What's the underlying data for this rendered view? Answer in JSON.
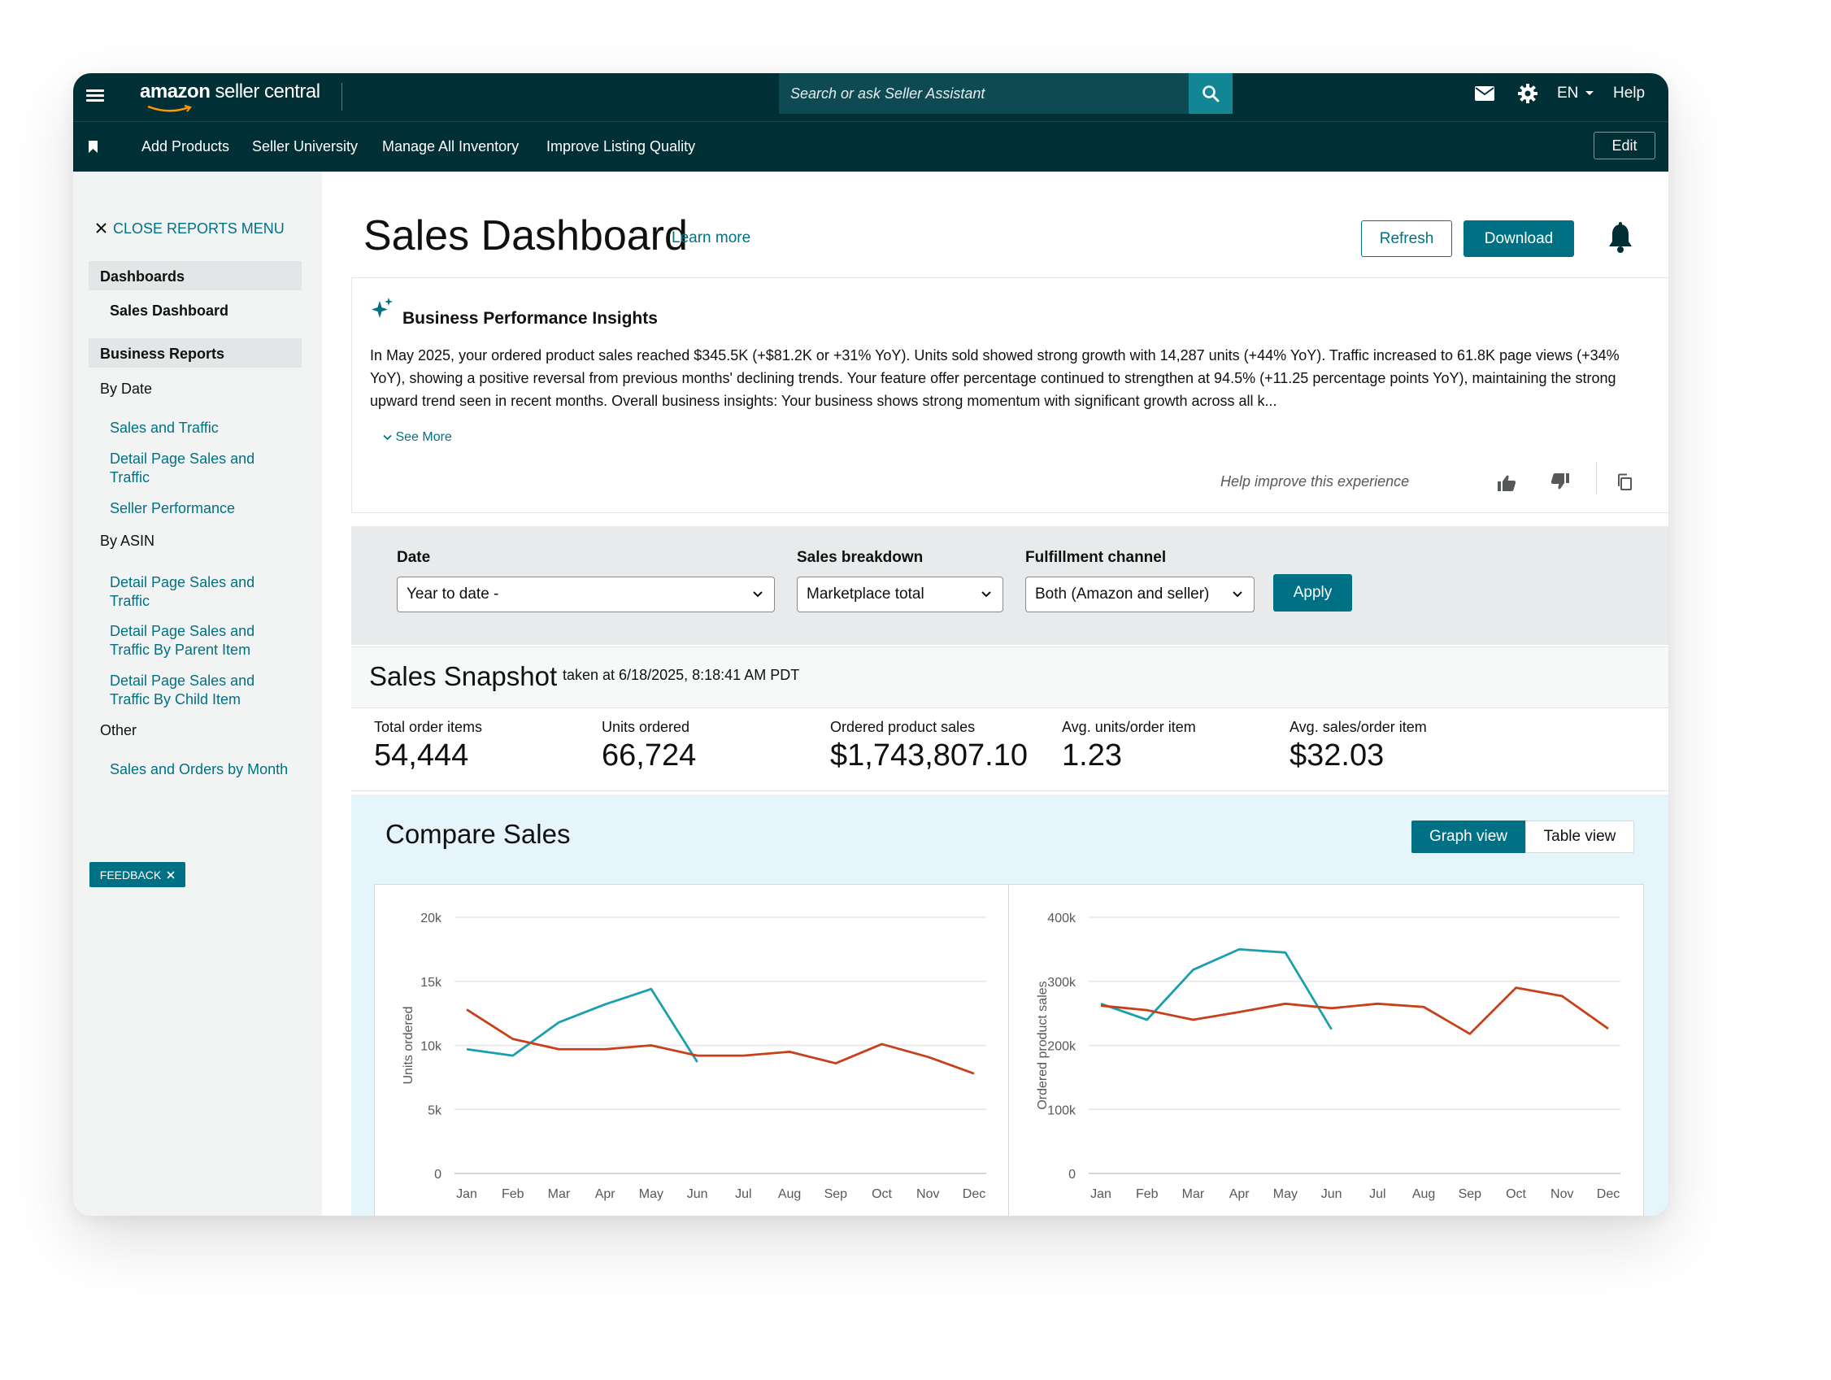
{
  "header": {
    "logo_brand": "amazon",
    "logo_product": " seller central",
    "search_placeholder": "Search or ask Seller Assistant",
    "language": "EN",
    "help": "Help"
  },
  "subnav": {
    "links": [
      "Add Products",
      "Seller University",
      "Manage All Inventory",
      "Improve Listing Quality"
    ],
    "edit": "Edit"
  },
  "sidebar": {
    "close_menu": "CLOSE REPORTS MENU",
    "dashboards_head": "Dashboards",
    "sales_dashboard": "Sales Dashboard",
    "business_reports_head": "Business Reports",
    "by_date": "By Date",
    "sales_and_traffic": "Sales and Traffic",
    "detail_page_sales_traffic_1": "Detail Page Sales and Traffic",
    "seller_performance": "Seller Performance",
    "by_asin": "By ASIN",
    "detail_page_sales_traffic_2": "Detail Page Sales and Traffic",
    "detail_page_parent": "Detail Page Sales and Traffic By Parent Item",
    "detail_page_child": "Detail Page Sales and Traffic By Child Item",
    "other": "Other",
    "sales_orders_month": "Sales and Orders by Month",
    "feedback": "FEEDBACK"
  },
  "page": {
    "title": "Sales Dashboard",
    "learn_more": "Learn more",
    "refresh": "Refresh",
    "download": "Download"
  },
  "insights": {
    "title": "Business Performance Insights",
    "text": "In May 2025, your ordered product sales reached $345.5K (+$81.2K or +31% YoY). Units sold showed strong growth with 14,287 units (+44% YoY). Traffic increased to 61.8K page views (+34% YoY), showing a positive reversal from previous months' declining trends. Your feature offer percentage continued to strengthen at 94.5% (+11.25 percentage points YoY), maintaining the strong upward trend seen in recent months. Overall business insights: Your business shows strong momentum with significant growth across all k...",
    "see_more": "See More",
    "help_improve": "Help improve this experience"
  },
  "filters": {
    "date_label": "Date",
    "date_value": "Year to date -",
    "breakdown_label": "Sales breakdown",
    "breakdown_value": "Marketplace total",
    "channel_label": "Fulfillment channel",
    "channel_value": "Both (Amazon and seller)",
    "apply": "Apply"
  },
  "snapshot": {
    "title": "Sales Snapshot",
    "taken_at": "taken at 6/18/2025, 8:18:41 AM PDT",
    "metrics": [
      {
        "label": "Total order items",
        "value": "54,444"
      },
      {
        "label": "Units ordered",
        "value": "66,724"
      },
      {
        "label": "Ordered product sales",
        "value": "$1,743,807.10"
      },
      {
        "label": "Avg. units/order item",
        "value": "1.23"
      },
      {
        "label": "Avg. sales/order item",
        "value": "$32.03"
      }
    ]
  },
  "compare": {
    "title": "Compare Sales",
    "graph_view": "Graph view",
    "table_view": "Table view"
  },
  "colors": {
    "header_bg": "#002f36",
    "accent": "#007185",
    "series_teal": "#1a9fae",
    "series_orange": "#c7401a"
  },
  "chart_data": [
    {
      "type": "line",
      "title": "",
      "ylabel": "Units ordered",
      "categories": [
        "Jan",
        "Feb",
        "Mar",
        "Apr",
        "May",
        "Jun",
        "Jul",
        "Aug",
        "Sep",
        "Oct",
        "Nov",
        "Dec"
      ],
      "ylim": [
        0,
        20000
      ],
      "ytick_labels": [
        "0",
        "5k",
        "10k",
        "15k",
        "20k"
      ],
      "grid": true,
      "series": [
        {
          "color": "#1a9fae",
          "values": [
            9700,
            9200,
            11800,
            13200,
            14400,
            8700,
            null,
            null,
            null,
            null,
            null,
            null
          ]
        },
        {
          "color": "#c7401a",
          "values": [
            12800,
            10500,
            9700,
            9700,
            10000,
            9200,
            9200,
            9500,
            8600,
            10100,
            9100,
            7800
          ]
        }
      ]
    },
    {
      "type": "line",
      "title": "",
      "ylabel": "Ordered product sales",
      "categories": [
        "Jan",
        "Feb",
        "Mar",
        "Apr",
        "May",
        "Jun",
        "Jul",
        "Aug",
        "Sep",
        "Oct",
        "Nov",
        "Dec"
      ],
      "ylim": [
        0,
        400000
      ],
      "ytick_labels": [
        "0",
        "100k",
        "200k",
        "300k",
        "400k"
      ],
      "grid": true,
      "series": [
        {
          "color": "#1a9fae",
          "values": [
            265000,
            240000,
            318000,
            350000,
            345000,
            225000,
            null,
            null,
            null,
            null,
            null,
            null
          ]
        },
        {
          "color": "#c7401a",
          "values": [
            262000,
            255000,
            240000,
            252000,
            265000,
            258000,
            265000,
            260000,
            218000,
            290000,
            277000,
            226000
          ]
        }
      ]
    }
  ]
}
